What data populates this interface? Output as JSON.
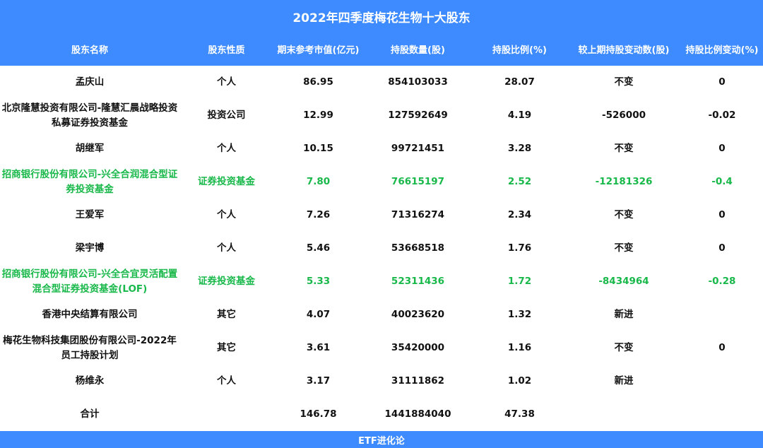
{
  "chart_data": {
    "type": "table",
    "title": "2022年四季度梅花生物十大股东",
    "columns": [
      "股东名称",
      "股东性质",
      "期末参考市值(亿元)",
      "持股数量(股)",
      "持股比例(%)",
      "较上期持股变动数(股)",
      "持股比例变动(%)"
    ],
    "rows": [
      {
        "name": "孟庆山",
        "type": "个人",
        "value": "86.95",
        "shares": "854103033",
        "ratio": "28.07",
        "change": "不变",
        "ratio_change": "0",
        "highlight": false
      },
      {
        "name": "北京隆慧投资有限公司-隆慧汇晨战略投资私募证券投资基金",
        "type": "投资公司",
        "value": "12.99",
        "shares": "127592649",
        "ratio": "4.19",
        "change": "-526000",
        "ratio_change": "-0.02",
        "highlight": false
      },
      {
        "name": "胡继军",
        "type": "个人",
        "value": "10.15",
        "shares": "99721451",
        "ratio": "3.28",
        "change": "不变",
        "ratio_change": "0",
        "highlight": false
      },
      {
        "name": "招商银行股份有限公司-兴全合润混合型证券投资基金",
        "type": "证券投资基金",
        "value": "7.80",
        "shares": "76615197",
        "ratio": "2.52",
        "change": "-12181326",
        "ratio_change": "-0.4",
        "highlight": true
      },
      {
        "name": "王爱军",
        "type": "个人",
        "value": "7.26",
        "shares": "71316274",
        "ratio": "2.34",
        "change": "不变",
        "ratio_change": "0",
        "highlight": false
      },
      {
        "name": "梁宇博",
        "type": "个人",
        "value": "5.46",
        "shares": "53668518",
        "ratio": "1.76",
        "change": "不变",
        "ratio_change": "0",
        "highlight": false
      },
      {
        "name": "招商银行股份有限公司-兴全合宜灵活配置混合型证券投资基金(LOF)",
        "type": "证券投资基金",
        "value": "5.33",
        "shares": "52311436",
        "ratio": "1.72",
        "change": "-8434964",
        "ratio_change": "-0.28",
        "highlight": true
      },
      {
        "name": "香港中央结算有限公司",
        "type": "其它",
        "value": "4.07",
        "shares": "40023620",
        "ratio": "1.32",
        "change": "新进",
        "ratio_change": "",
        "highlight": false
      },
      {
        "name": "梅花生物科技集团股份有限公司-2022年员工持股计划",
        "type": "其它",
        "value": "3.61",
        "shares": "35420000",
        "ratio": "1.16",
        "change": "不变",
        "ratio_change": "0",
        "highlight": false
      },
      {
        "name": "杨维永",
        "type": "个人",
        "value": "3.17",
        "shares": "31111862",
        "ratio": "1.02",
        "change": "新进",
        "ratio_change": "",
        "highlight": false
      }
    ],
    "total": {
      "label": "合计",
      "value": "146.78",
      "shares": "1441884040",
      "ratio": "47.38"
    }
  },
  "footer": "ETF进化论",
  "colors": {
    "header_bg": "#3d8bff",
    "highlight_text": "#19b84a",
    "text": "#111111"
  }
}
